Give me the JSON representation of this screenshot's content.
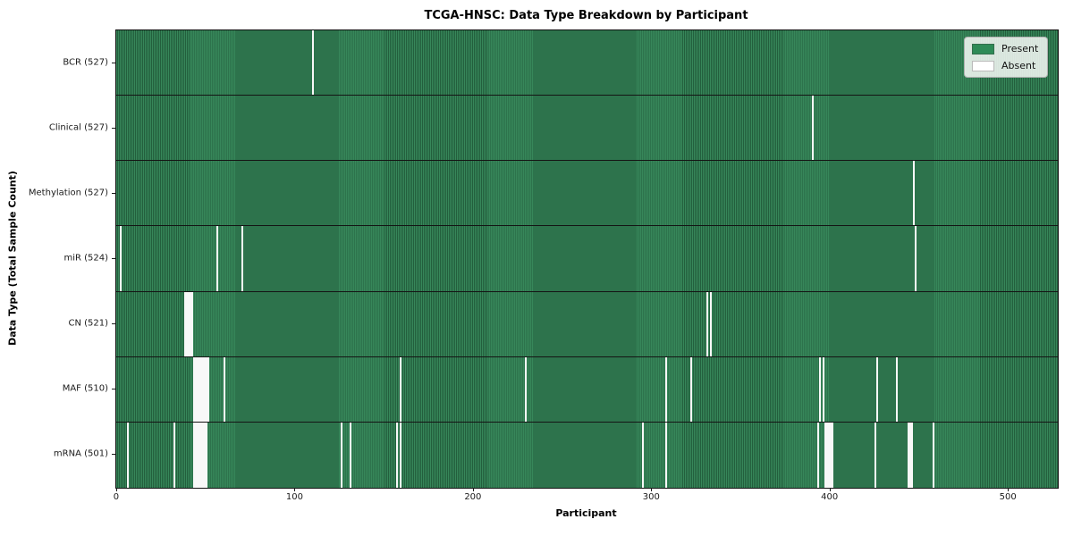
{
  "chart_data": {
    "type": "heatmap",
    "title": "TCGA-HNSC: Data Type Breakdown by Participant",
    "xlabel": "Participant",
    "ylabel": "Data Type (Total Sample Count)",
    "n_participants": 528,
    "x_ticks": [
      0,
      100,
      200,
      300,
      400,
      500
    ],
    "grid": false,
    "legend": {
      "position": "upper right",
      "entries": [
        {
          "label": "Present",
          "color": "#2e8b57"
        },
        {
          "label": "Absent",
          "color": "#ffffff"
        }
      ]
    },
    "colors": {
      "present": "#2e8b57",
      "present_stripe_dark": "#235f3d",
      "absent": "#f8f8f8",
      "row_divider": "#141414"
    },
    "rows": [
      {
        "data_type": "BCR",
        "label": "BCR (527)",
        "present_count": 527,
        "absent_participants": [
          110
        ]
      },
      {
        "data_type": "Clinical",
        "label": "Clinical (527)",
        "present_count": 527,
        "absent_participants": [
          390
        ]
      },
      {
        "data_type": "Methylation",
        "label": "Methylation (527)",
        "present_count": 527,
        "absent_participants": [
          447
        ]
      },
      {
        "data_type": "miR",
        "label": "miR (524)",
        "present_count": 524,
        "absent_participants": [
          2,
          56,
          70,
          448
        ]
      },
      {
        "data_type": "CN",
        "label": "CN (521)",
        "present_count": 521,
        "absent_participants": [
          38,
          39,
          40,
          41,
          42,
          331,
          333
        ]
      },
      {
        "data_type": "MAF",
        "label": "MAF (510)",
        "present_count": 510,
        "absent_participants": [
          43,
          44,
          45,
          46,
          47,
          48,
          49,
          50,
          51,
          60,
          159,
          229,
          308,
          322,
          394,
          396,
          426,
          437
        ]
      },
      {
        "data_type": "mRNA",
        "label": "mRNA (501)",
        "present_count": 501,
        "absent_participants": [
          6,
          32,
          43,
          44,
          45,
          46,
          47,
          48,
          49,
          50,
          126,
          131,
          157,
          159,
          295,
          308,
          393,
          397,
          398,
          399,
          400,
          401,
          425,
          444,
          445,
          446,
          458
        ]
      }
    ]
  }
}
